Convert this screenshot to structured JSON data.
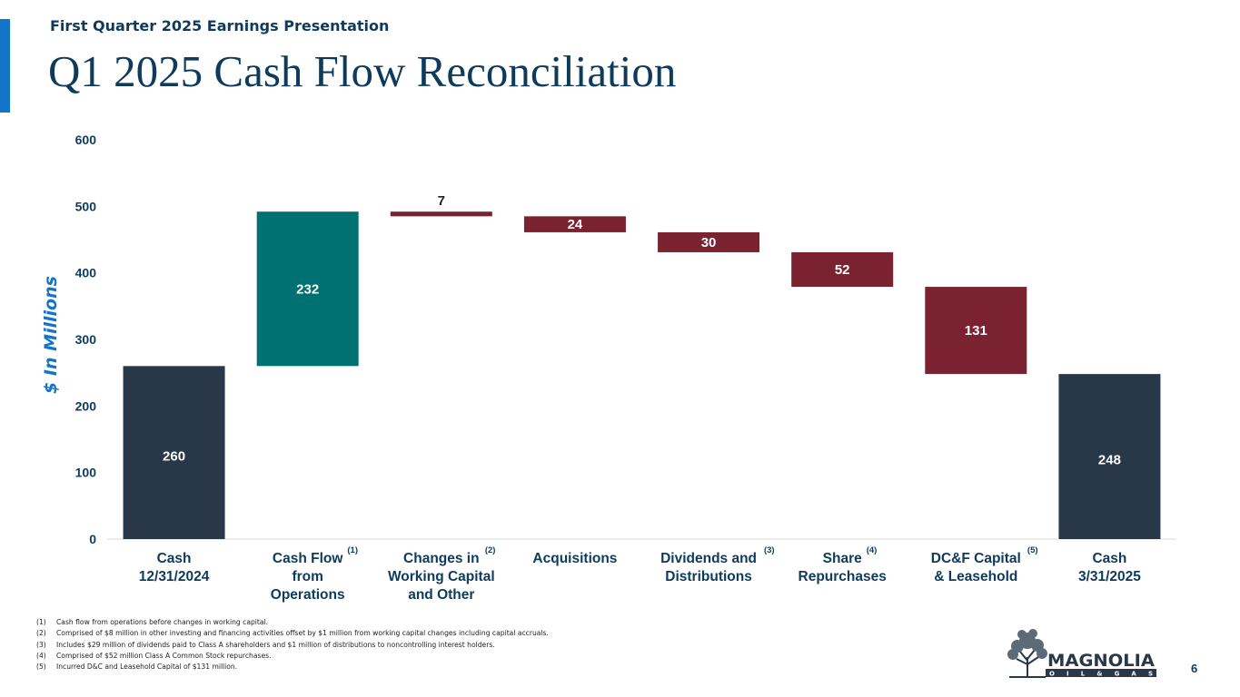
{
  "header": {
    "subtitle": "First Quarter 2025 Earnings Presentation",
    "title": "Q1 2025 Cash Flow Reconciliation"
  },
  "colors": {
    "accent": "#1374c9",
    "title": "#0e3b5c",
    "total": "#283849",
    "increase": "#007172",
    "decrease": "#7b2230"
  },
  "chart_data": {
    "type": "bar",
    "subtype": "waterfall",
    "ylabel": "$ In Millions",
    "ylim": [
      0,
      600
    ],
    "yticks": [
      0,
      100,
      200,
      300,
      400,
      500,
      600
    ],
    "grid": false,
    "categories": [
      {
        "label": [
          "Cash",
          "12/31/2024"
        ],
        "note": "",
        "kind": "total",
        "value": 260,
        "start": 0,
        "end": 260,
        "label_text": "260",
        "label_pos": "inside"
      },
      {
        "label": [
          "Cash Flow",
          "from",
          "Operations"
        ],
        "note": "(1)",
        "kind": "increase",
        "value": 232,
        "start": 260,
        "end": 492,
        "label_text": "232",
        "label_pos": "inside"
      },
      {
        "label": [
          "Changes in",
          "Working Capital",
          "and Other"
        ],
        "note": "(2)",
        "kind": "decrease",
        "value": 7,
        "start": 492,
        "end": 485,
        "label_text": "7",
        "label_pos": "above"
      },
      {
        "label": [
          "Acquisitions"
        ],
        "note": "",
        "kind": "decrease",
        "value": 24,
        "start": 485,
        "end": 461,
        "label_text": "24",
        "label_pos": "inside"
      },
      {
        "label": [
          "Dividends and",
          "Distributions"
        ],
        "note": "(3)",
        "kind": "decrease",
        "value": 30,
        "start": 461,
        "end": 431,
        "label_text": "30",
        "label_pos": "inside"
      },
      {
        "label": [
          "Share",
          "Repurchases"
        ],
        "note": "(4)",
        "kind": "decrease",
        "value": 52,
        "start": 431,
        "end": 379,
        "label_text": "52",
        "label_pos": "inside"
      },
      {
        "label": [
          "DC&F Capital",
          "& Leasehold"
        ],
        "note": "(5)",
        "kind": "decrease",
        "value": 131,
        "start": 379,
        "end": 248,
        "label_text": "131",
        "label_pos": "inside"
      },
      {
        "label": [
          "Cash",
          "3/31/2025"
        ],
        "note": "",
        "kind": "total",
        "value": 248,
        "start": 0,
        "end": 248,
        "label_text": "248",
        "label_pos": "inside"
      }
    ]
  },
  "footnotes": [
    {
      "mark": "(1)",
      "text": "Cash flow from operations before changes in working capital."
    },
    {
      "mark": "(2)",
      "text": "Comprised of $8 million in other investing and financing activities offset by $1 million from working capital changes including capital accruals."
    },
    {
      "mark": "(3)",
      "text": "Includes $29 million of dividends paid to Class A shareholders and $1 million of distributions to noncontrolling interest holders."
    },
    {
      "mark": "(4)",
      "text": "Comprised of $52 million Class A Common Stock repurchases."
    },
    {
      "mark": "(5)",
      "text": "Incurred D&C and Leasehold Capital of $131 million."
    }
  ],
  "logo": {
    "name": "MAGNOLIA",
    "tagline": "O I L & G A S"
  },
  "page_number": "6"
}
